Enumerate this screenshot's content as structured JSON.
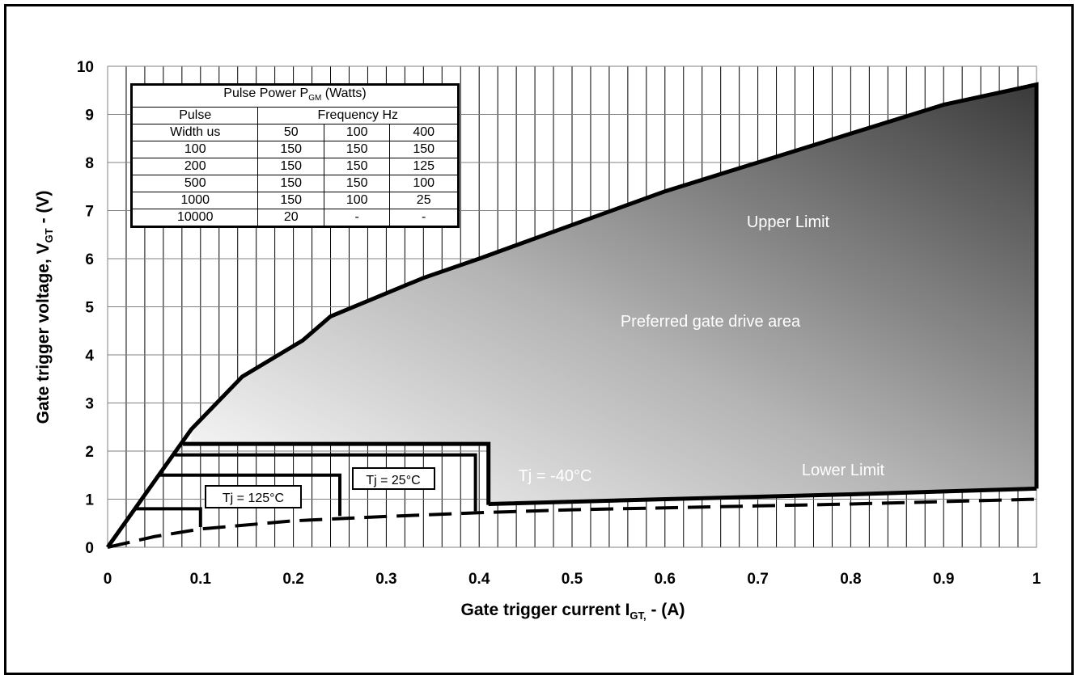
{
  "chart_data": {
    "type": "area",
    "xlabel_main": "Gate trigger current I",
    "xlabel_sub": "GT,",
    "xlabel_tail": " - (A)",
    "ylabel_main": "Gate trigger voltage,  V",
    "ylabel_sub": "GT",
    "ylabel_tail": " - (V)",
    "xlim": [
      0,
      1
    ],
    "ylim": [
      0,
      10
    ],
    "x_ticks": [
      "0",
      "0.1",
      "0.2",
      "0.3",
      "0.4",
      "0.5",
      "0.6",
      "0.7",
      "0.8",
      "0.9",
      "1"
    ],
    "y_ticks": [
      "0",
      "1",
      "2",
      "3",
      "4",
      "5",
      "6",
      "7",
      "8",
      "9",
      "10"
    ],
    "grid": true,
    "upper_limit": [
      [
        0,
        0
      ],
      [
        0.09,
        2.45
      ],
      [
        0.145,
        3.55
      ],
      [
        0.21,
        4.3
      ],
      [
        0.24,
        4.8
      ],
      [
        0.34,
        5.6
      ],
      [
        0.4,
        6.0
      ],
      [
        0.5,
        6.7
      ],
      [
        0.6,
        7.4
      ],
      [
        0.7,
        8.0
      ],
      [
        0.8,
        8.6
      ],
      [
        0.9,
        9.2
      ],
      [
        1.0,
        9.62
      ]
    ],
    "lower_limit": [
      [
        0.41,
        0.9
      ],
      [
        0.6,
        1.0
      ],
      [
        0.8,
        1.1
      ],
      [
        1.0,
        1.22
      ]
    ],
    "dashed_curve": [
      [
        0,
        0
      ],
      [
        0.05,
        0.22
      ],
      [
        0.1,
        0.38
      ],
      [
        0.2,
        0.55
      ],
      [
        0.3,
        0.64
      ],
      [
        0.4,
        0.72
      ],
      [
        0.5,
        0.78
      ],
      [
        0.6,
        0.82
      ],
      [
        0.7,
        0.86
      ],
      [
        0.8,
        0.9
      ],
      [
        0.9,
        0.95
      ],
      [
        1.0,
        1.0
      ]
    ],
    "tj_boxes": [
      {
        "label": "Tj = -40°C",
        "x_end": 0.41,
        "v": 2.15
      },
      {
        "label": "Tj = 25°C",
        "x_end": 0.396,
        "v": 1.92
      },
      {
        "label": "Tj = 25°C",
        "x_end": 0.25,
        "v": 1.5
      },
      {
        "label": "Tj = 125°C",
        "x_end": 0.1,
        "v": 0.8
      }
    ],
    "annotations": {
      "upper_limit": "Upper Limit",
      "preferred": "Preferred gate drive area",
      "lower_limit": "Lower Limit",
      "tj_minus40": "Tj = -40°C",
      "tj_25": "Tj = 25°C",
      "tj_125": "Tj = 125°C"
    }
  },
  "table": {
    "title_main": "Pulse Power P",
    "title_sub": "GM",
    "title_tail": " (Watts)",
    "col_pulse": "Pulse",
    "col_width": "Width us",
    "col_freq": "Frequency Hz",
    "freqs": [
      "50",
      "100",
      "400"
    ],
    "rows": [
      [
        "100",
        "150",
        "150",
        "150"
      ],
      [
        "200",
        "150",
        "150",
        "125"
      ],
      [
        "500",
        "150",
        "150",
        "100"
      ],
      [
        "1000",
        "150",
        "100",
        "25"
      ],
      [
        "10000",
        "20",
        "-",
        "-"
      ]
    ]
  }
}
